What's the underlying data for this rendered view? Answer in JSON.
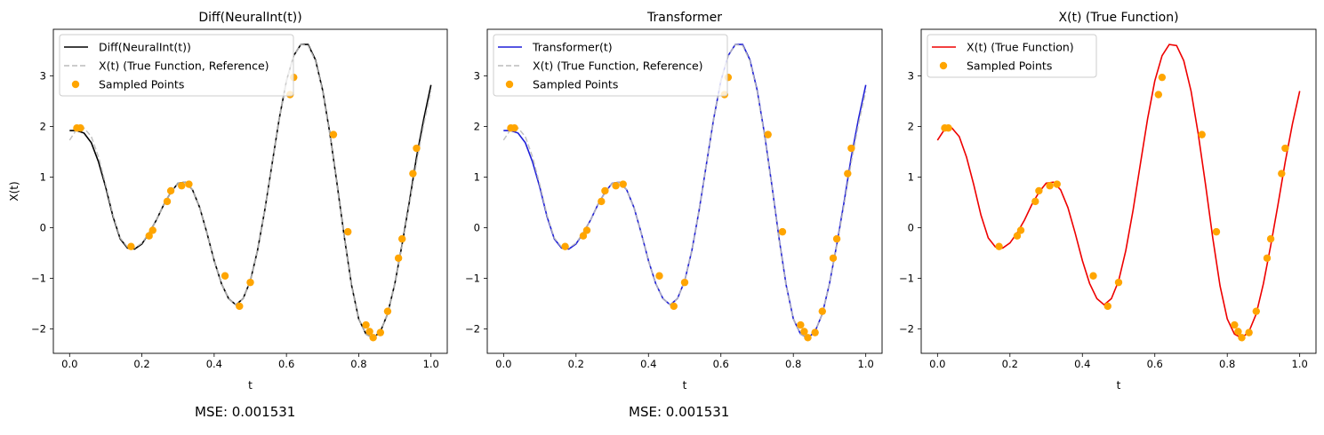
{
  "mse_labels": [
    "MSE: 0.001531",
    "MSE: 0.001531"
  ],
  "chart_data": [
    {
      "type": "line",
      "title": "Diff(NeuralInt(t))",
      "xlabel": "t",
      "ylabel": "X(t)",
      "xlim": [
        -0.045,
        1.045
      ],
      "ylim": [
        -2.48,
        3.92
      ],
      "xticks": [
        0.0,
        0.2,
        0.4,
        0.6,
        0.8,
        1.0
      ],
      "xtick_labels": [
        "0.0",
        "0.2",
        "0.4",
        "0.6",
        "0.8",
        "1.0"
      ],
      "yticks": [
        -2,
        -1,
        0,
        1,
        2,
        3
      ],
      "ytick_labels": [
        "−2",
        "−1",
        "0",
        "1",
        "2",
        "3"
      ],
      "legend_position": "top-left",
      "series": [
        {
          "name": "Diff(NeuralInt(t))",
          "kind": "model",
          "color": "#000000",
          "style": "solid"
        },
        {
          "name": "X(t) (True Function, Reference)",
          "kind": "true",
          "color": "#bbbbbb",
          "style": "dashed"
        },
        {
          "name": "Sampled Points",
          "kind": "points",
          "color": "#ffa500",
          "style": "marker"
        }
      ]
    },
    {
      "type": "line",
      "title": "Transformer",
      "xlabel": "t",
      "ylabel": "",
      "xlim": [
        -0.045,
        1.045
      ],
      "ylim": [
        -2.48,
        3.92
      ],
      "xticks": [
        0.0,
        0.2,
        0.4,
        0.6,
        0.8,
        1.0
      ],
      "xtick_labels": [
        "0.0",
        "0.2",
        "0.4",
        "0.6",
        "0.8",
        "1.0"
      ],
      "yticks": [
        -2,
        -1,
        0,
        1,
        2,
        3
      ],
      "ytick_labels": [
        "−2",
        "−1",
        "0",
        "1",
        "2",
        "3"
      ],
      "legend_position": "top-left",
      "series": [
        {
          "name": "Transformer(t)",
          "kind": "model",
          "color": "#1f1fd8",
          "style": "solid"
        },
        {
          "name": "X(t) (True Function, Reference)",
          "kind": "true",
          "color": "#bbbbbb",
          "style": "dashed"
        },
        {
          "name": "Sampled Points",
          "kind": "points",
          "color": "#ffa500",
          "style": "marker"
        }
      ]
    },
    {
      "type": "line",
      "title": "X(t) (True Function)",
      "xlabel": "t",
      "ylabel": "",
      "xlim": [
        -0.045,
        1.045
      ],
      "ylim": [
        -2.48,
        3.92
      ],
      "xticks": [
        0.0,
        0.2,
        0.4,
        0.6,
        0.8,
        1.0
      ],
      "xtick_labels": [
        "0.0",
        "0.2",
        "0.4",
        "0.6",
        "0.8",
        "1.0"
      ],
      "yticks": [
        -2,
        -1,
        0,
        1,
        2,
        3
      ],
      "ytick_labels": [
        "−2",
        "−1",
        "0",
        "1",
        "2",
        "3"
      ],
      "legend_position": "top-left",
      "series": [
        {
          "name": "X(t) (True Function)",
          "kind": "true",
          "color": "#ee0000",
          "style": "solid"
        },
        {
          "name": "Sampled Points",
          "kind": "points",
          "color": "#ffa500",
          "style": "marker"
        }
      ]
    }
  ],
  "curves": {
    "true_x": [
      0.0,
      0.02,
      0.04,
      0.06,
      0.08,
      0.1,
      0.12,
      0.14,
      0.16,
      0.18,
      0.2,
      0.22,
      0.24,
      0.26,
      0.28,
      0.3,
      0.32,
      0.34,
      0.36,
      0.38,
      0.4,
      0.42,
      0.44,
      0.46,
      0.48,
      0.5,
      0.52,
      0.54,
      0.56,
      0.58,
      0.6,
      0.62,
      0.64,
      0.66,
      0.68,
      0.7,
      0.72,
      0.74,
      0.76,
      0.78,
      0.8,
      0.82,
      0.84,
      0.86,
      0.88,
      0.9,
      0.92,
      0.94,
      0.96,
      0.98,
      1.0
    ],
    "true_y": [
      1.73,
      1.95,
      1.97,
      1.8,
      1.4,
      0.85,
      0.25,
      -0.2,
      -0.38,
      -0.4,
      -0.3,
      -0.1,
      0.15,
      0.45,
      0.7,
      0.88,
      0.9,
      0.75,
      0.4,
      -0.1,
      -0.65,
      -1.1,
      -1.4,
      -1.52,
      -1.4,
      -1.05,
      -0.45,
      0.35,
      1.25,
      2.15,
      2.9,
      3.4,
      3.62,
      3.6,
      3.3,
      2.7,
      1.85,
      0.85,
      -0.2,
      -1.15,
      -1.8,
      -2.1,
      -2.18,
      -2.05,
      -1.7,
      -1.1,
      -0.35,
      0.45,
      1.3,
      2.05,
      2.7
    ],
    "model_x": [
      0.0,
      0.02,
      0.04,
      0.06,
      0.08,
      0.1,
      0.12,
      0.14,
      0.16,
      0.18,
      0.2,
      0.22,
      0.24,
      0.26,
      0.28,
      0.3,
      0.32,
      0.34,
      0.36,
      0.38,
      0.4,
      0.42,
      0.44,
      0.46,
      0.48,
      0.5,
      0.52,
      0.54,
      0.56,
      0.58,
      0.6,
      0.62,
      0.64,
      0.66,
      0.68,
      0.7,
      0.72,
      0.74,
      0.76,
      0.78,
      0.8,
      0.82,
      0.84,
      0.86,
      0.88,
      0.9,
      0.92,
      0.94,
      0.96,
      0.98,
      1.0
    ],
    "model_y": [
      1.92,
      1.92,
      1.87,
      1.68,
      1.3,
      0.8,
      0.22,
      -0.22,
      -0.4,
      -0.42,
      -0.32,
      -0.1,
      0.15,
      0.45,
      0.7,
      0.88,
      0.9,
      0.75,
      0.4,
      -0.1,
      -0.65,
      -1.1,
      -1.4,
      -1.52,
      -1.4,
      -1.05,
      -0.45,
      0.35,
      1.25,
      2.15,
      2.9,
      3.4,
      3.62,
      3.62,
      3.32,
      2.72,
      1.87,
      0.87,
      -0.18,
      -1.13,
      -1.8,
      -2.1,
      -2.18,
      -2.05,
      -1.7,
      -1.1,
      -0.33,
      0.5,
      1.4,
      2.15,
      2.82
    ],
    "sampled_x": [
      0.02,
      0.03,
      0.17,
      0.22,
      0.23,
      0.27,
      0.28,
      0.31,
      0.33,
      0.43,
      0.47,
      0.5,
      0.61,
      0.62,
      0.73,
      0.77,
      0.82,
      0.83,
      0.84,
      0.86,
      0.88,
      0.91,
      0.92,
      0.95,
      0.96
    ],
    "sampled_y": [
      1.97,
      1.97,
      -0.37,
      -0.16,
      -0.05,
      0.52,
      0.73,
      0.83,
      0.86,
      -0.95,
      -1.55,
      -1.08,
      2.63,
      2.97,
      1.84,
      -0.08,
      -1.92,
      -2.05,
      -2.17,
      -2.07,
      -1.65,
      -0.6,
      -0.22,
      1.07,
      1.57
    ]
  }
}
